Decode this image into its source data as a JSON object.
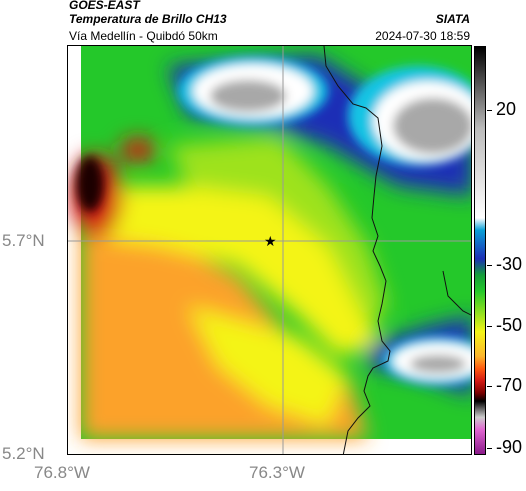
{
  "header": {
    "satellite": "GOES-EAST",
    "product": "Temperatura de Brillo CH13",
    "route": "Vía Medellín - Quibdó 50km",
    "organization": "SIATA",
    "timestamp": "2024-07-30 18:59"
  },
  "map": {
    "lat_labels": [
      "5.7°N",
      "5.2°N"
    ],
    "lon_labels": [
      "76.8°W",
      "76.3°W"
    ],
    "marker": "star-marker",
    "colors": {
      "white": "#ffffff",
      "gray": "#a8a8a8",
      "cyan": "#19c4e4",
      "blue": "#1d2fb6",
      "green": "#24c82a",
      "yellowgreen": "#9ee21e",
      "yellow": "#f4f418",
      "orange": "#fca22c",
      "red": "#d21a14",
      "black": "#1a0000"
    }
  },
  "colorbar": {
    "labels": [
      "20",
      "-30",
      "-50",
      "-70",
      "-90"
    ]
  }
}
